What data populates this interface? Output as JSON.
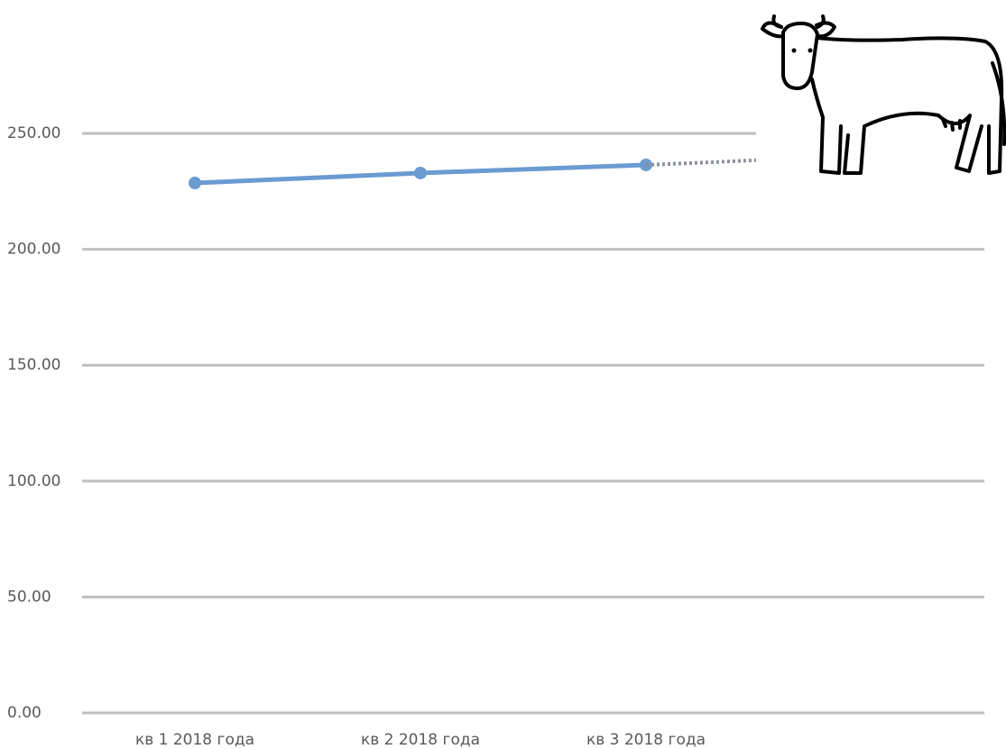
{
  "chart_data": {
    "type": "line",
    "categories": [
      "кв 1 2018 года",
      "кв 2 2018 года",
      "кв 3 2018 года",
      null
    ],
    "series": [
      {
        "color": "#6a9bd1",
        "values": [
          228.6,
          232.9,
          236.4,
          null
        ]
      },
      {
        "color": "#8a9098",
        "dash": "dotted",
        "values": [
          null,
          null,
          236.4,
          240.5
        ]
      }
    ],
    "ylim": [
      0,
      250
    ],
    "yticks": [
      {
        "value": 0,
        "label": "0.00"
      },
      {
        "value": 50,
        "label": "50.00"
      },
      {
        "value": 100,
        "label": "100.00"
      },
      {
        "value": 150,
        "label": "150.00"
      },
      {
        "value": 200,
        "label": "200.00"
      },
      {
        "value": 250,
        "label": "250.00"
      }
    ],
    "grid": true
  }
}
